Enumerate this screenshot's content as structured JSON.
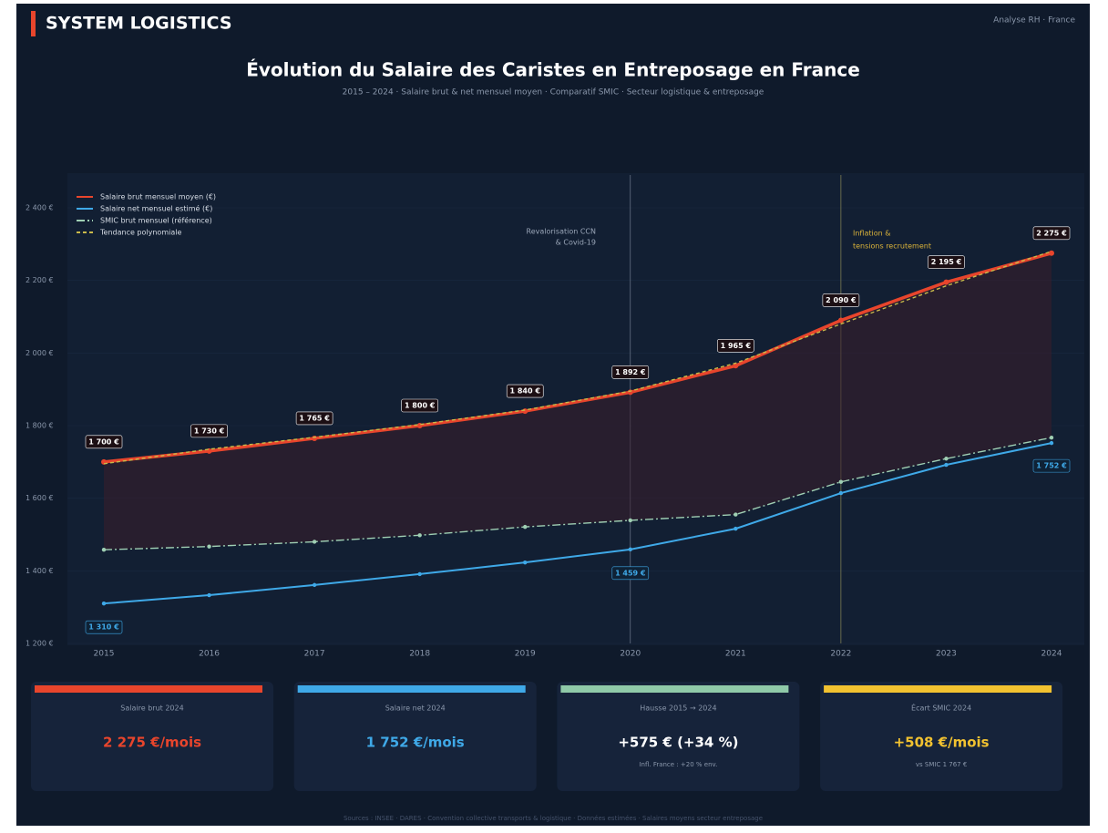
{
  "header": {
    "brand": "SYSTEM LOGISTICS",
    "tag": "Analyse RH · France"
  },
  "chart_data": {
    "type": "line",
    "title": "Évolution du Salaire des Caristes en Entreposage en France",
    "subtitle": "2015 – 2024 · Salaire brut & net mensuel moyen · Comparatif SMIC · Secteur logistique & entreposage",
    "categories": [
      "2015",
      "2016",
      "2017",
      "2018",
      "2019",
      "2020",
      "2021",
      "2022",
      "2023",
      "2024"
    ],
    "series": [
      {
        "name": "Salaire brut mensuel moyen (€)",
        "color": "#e8452c",
        "style": "solid",
        "values": [
          1700,
          1730,
          1765,
          1800,
          1840,
          1892,
          1965,
          2090,
          2195,
          2275
        ],
        "value_labels": [
          "1 700 €",
          "1 730 €",
          "1 765 €",
          "1 800 €",
          "1 840 €",
          "1 892 €",
          "1 965 €",
          "2 090 €",
          "2 195 €",
          "2 275 €"
        ]
      },
      {
        "name": "Salaire net mensuel estimé (€)",
        "color": "#3fa9e8",
        "style": "solid",
        "values": [
          1310,
          1333,
          1361,
          1391,
          1423,
          1459,
          1516,
          1614,
          1692,
          1752
        ],
        "value_labels": [
          "1 310 €",
          null,
          null,
          null,
          null,
          "1 459 €",
          null,
          null,
          null,
          "1 752 €"
        ]
      },
      {
        "name": "SMIC brut mensuel (référence)",
        "color": "#9fcfb3",
        "style": "dashdot",
        "values": [
          1458,
          1467,
          1480,
          1498,
          1521,
          1539,
          1555,
          1645,
          1709,
          1767
        ]
      },
      {
        "name": "Tendance polynomiale",
        "color": "#c9b94a",
        "style": "dash",
        "values": [
          1695,
          1735,
          1768,
          1803,
          1843,
          1895,
          1972,
          2080,
          2185,
          2280
        ]
      }
    ],
    "ylim": [
      1200,
      2400
    ],
    "yticks": [
      {
        "value": 1200,
        "label": "1 200 €"
      },
      {
        "value": 1400,
        "label": "1 400 €"
      },
      {
        "value": 1600,
        "label": "1 600 €"
      },
      {
        "value": 1800,
        "label": "1 800 €"
      },
      {
        "value": 2000,
        "label": "2 000 €"
      },
      {
        "value": 2200,
        "label": "2 200 €"
      },
      {
        "value": 2400,
        "label": "2 400 €"
      }
    ],
    "annotations": [
      {
        "text": "Revalorisation CCN",
        "text2": "& Covid-19"
      },
      {
        "text": "Inflation &",
        "text2": "tensions recrutement"
      }
    ],
    "legend": "upper left"
  },
  "kpis": [
    {
      "label": "Salaire brut 2024",
      "value": "2 275 €/mois",
      "color": "#e8452c"
    },
    {
      "label": "Salaire net 2024",
      "value": "1 752 €/mois",
      "color": "#3fa9e8"
    },
    {
      "label": "Hausse 2015 → 2024",
      "value": "+575 €  (+34 %)",
      "note": "Infl. France : +20 % env.",
      "color": "#8fc9a8"
    },
    {
      "label": "Écart SMIC 2024",
      "value": "+508 €/mois",
      "note": "vs SMIC 1 767 €",
      "color": "#f2c230"
    }
  ],
  "footer": "Sources : INSEE · DARES · Convention collective transports & logistique · Données estimées · Salaires moyens secteur entreposage"
}
